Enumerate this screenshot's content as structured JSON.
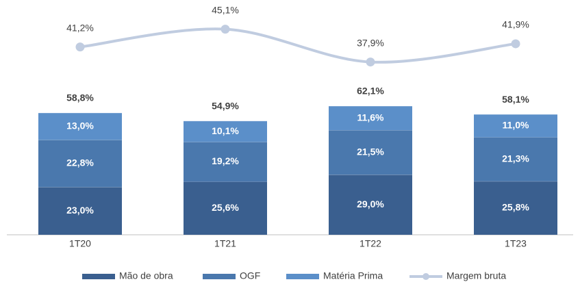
{
  "chart_data": {
    "type": "bar",
    "stacked": true,
    "categories": [
      "1T20",
      "1T21",
      "1T22",
      "1T23"
    ],
    "series": [
      {
        "name": "Mão de obra",
        "color": "#3a5f8f",
        "values": [
          23.0,
          25.6,
          29.0,
          25.8
        ],
        "value_labels": [
          "23,0%",
          "25,6%",
          "29,0%",
          "25,8%"
        ]
      },
      {
        "name": "OGF",
        "color": "#4a78ad",
        "values": [
          22.8,
          19.2,
          21.5,
          21.3
        ],
        "value_labels": [
          "22,8%",
          "19,2%",
          "21,5%",
          "21,3%"
        ]
      },
      {
        "name": "Matéria Prima",
        "color": "#5b8fc9",
        "values": [
          13.0,
          10.1,
          11.6,
          11.0
        ],
        "value_labels": [
          "13,0%",
          "10,1%",
          "11,6%",
          "11,0%"
        ]
      },
      {
        "name": "Margem bruta",
        "type": "line",
        "axis": "y2",
        "color": "#c0cce0",
        "values": [
          41.2,
          45.1,
          37.9,
          41.9
        ],
        "value_labels": [
          "41,2%",
          "45,1%",
          "37,9%",
          "41,9%"
        ]
      }
    ],
    "totals": {
      "values": [
        58.8,
        54.9,
        62.1,
        58.1
      ],
      "value_labels": [
        "58,8%",
        "54,9%",
        "62,1%",
        "58,1%"
      ]
    },
    "ylim": [
      0,
      110
    ],
    "y2lim": [
      0,
      50
    ],
    "legend": "bottom"
  }
}
